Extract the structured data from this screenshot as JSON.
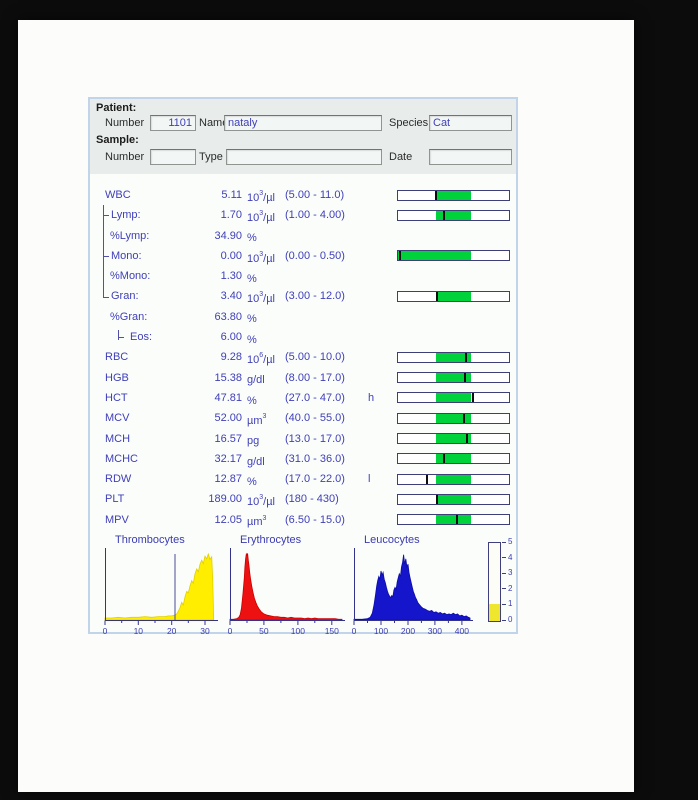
{
  "window": {
    "stage_bg": "#0c0c0c",
    "page_bg": "#fcfcfa"
  },
  "panel": {
    "colors": {
      "panel_border": "#c2d4ea",
      "header_bg": "#e8edeb",
      "body_bg": "#fbfdfb",
      "value_text": "#4040b8",
      "bar_green": "#00d23c",
      "bar_border": "#3e3e78",
      "bar_marker": "#0d0d0d",
      "axis": "#33338c"
    },
    "header": {
      "patient_section_label": "Patient:",
      "sample_section_label": "Sample:",
      "number_label": "Number",
      "name_label": "Name",
      "species_label": "Species",
      "type_label": "Type",
      "date_label": "Date",
      "patient_number": "1101",
      "patient_name": "nataly",
      "species": "Cat",
      "sample_number": "",
      "sample_type": "",
      "sample_date": ""
    }
  },
  "results": {
    "rows": [
      {
        "label": "WBC",
        "tree": "none",
        "value": "5.11",
        "unit": {
          "pre": "10",
          "sup": "3",
          "post": "/µl"
        },
        "range": "(5.00 - 11.0)",
        "flag": "",
        "bar": {
          "green_start": 34,
          "green_end": 66,
          "marker": 34.6
        }
      },
      {
        "label": "Lymp:",
        "tree": "branch",
        "value": "1.70",
        "unit": {
          "pre": "10",
          "sup": "3",
          "post": "/µl"
        },
        "range": "(1.00 - 4.00)",
        "flag": "",
        "bar": {
          "green_start": 34,
          "green_end": 66,
          "marker": 41.5
        }
      },
      {
        "label": "%Lymp:",
        "tree": "vert",
        "value": "34.90",
        "unit": {
          "pre": "%",
          "sup": "",
          "post": ""
        },
        "range": "",
        "flag": "",
        "bar": null
      },
      {
        "label": "Mono:",
        "tree": "branch",
        "value": "0.00",
        "unit": {
          "pre": "10",
          "sup": "3",
          "post": "/µl"
        },
        "range": "(0.00 - 0.50)",
        "flag": "",
        "bar": {
          "green_start": 0,
          "green_end": 66,
          "marker": 0.8
        }
      },
      {
        "label": "%Mono:",
        "tree": "vert",
        "value": "1.30",
        "unit": {
          "pre": "%",
          "sup": "",
          "post": ""
        },
        "range": "",
        "flag": "",
        "bar": null
      },
      {
        "label": "Gran:",
        "tree": "corner",
        "value": "3.40",
        "unit": {
          "pre": "10",
          "sup": "3",
          "post": "/µl"
        },
        "range": "(3.00 - 12.0)",
        "flag": "",
        "bar": {
          "green_start": 34,
          "green_end": 66,
          "marker": 35.4
        }
      },
      {
        "label": "%Gran:",
        "tree": "blank",
        "value": "63.80",
        "unit": {
          "pre": "%",
          "sup": "",
          "post": ""
        },
        "range": "",
        "flag": "",
        "bar": null
      },
      {
        "label": "Eos:",
        "tree": "eos",
        "value": "6.00",
        "unit": {
          "pre": "%",
          "sup": "",
          "post": ""
        },
        "range": "",
        "flag": "",
        "bar": null
      },
      {
        "label": "RBC",
        "tree": "none",
        "value": "9.28",
        "unit": {
          "pre": "10",
          "sup": "6",
          "post": "/µl"
        },
        "range": "(5.00 - 10.0)",
        "flag": "",
        "bar": {
          "green_start": 34,
          "green_end": 66,
          "marker": 61.4
        }
      },
      {
        "label": "HGB",
        "tree": "none",
        "value": "15.38",
        "unit": {
          "pre": "g/dl",
          "sup": "",
          "post": ""
        },
        "range": "(8.00 - 17.0)",
        "flag": "",
        "bar": {
          "green_start": 34,
          "green_end": 66,
          "marker": 60.2
        }
      },
      {
        "label": "HCT",
        "tree": "none",
        "value": "47.81",
        "unit": {
          "pre": "%",
          "sup": "",
          "post": ""
        },
        "range": "(27.0 - 47.0)",
        "flag": "h",
        "bar": {
          "green_start": 34,
          "green_end": 66,
          "marker": 67.3
        }
      },
      {
        "label": "MCV",
        "tree": "none",
        "value": "52.00",
        "unit": {
          "pre": "µm",
          "sup": "3",
          "post": ""
        },
        "range": "(40.0 - 55.0)",
        "flag": "",
        "bar": {
          "green_start": 34,
          "green_end": 66,
          "marker": 59.6
        }
      },
      {
        "label": "MCH",
        "tree": "none",
        "value": "16.57",
        "unit": {
          "pre": "pg",
          "sup": "",
          "post": ""
        },
        "range": "(13.0 - 17.0)",
        "flag": "",
        "bar": {
          "green_start": 34,
          "green_end": 66,
          "marker": 62.6
        }
      },
      {
        "label": "MCHC",
        "tree": "none",
        "value": "32.17",
        "unit": {
          "pre": "g/dl",
          "sup": "",
          "post": ""
        },
        "range": "(31.0 - 36.0)",
        "flag": "",
        "bar": {
          "green_start": 34,
          "green_end": 66,
          "marker": 41.5
        }
      },
      {
        "label": "RDW",
        "tree": "none",
        "value": "12.87",
        "unit": {
          "pre": "%",
          "sup": "",
          "post": ""
        },
        "range": "(17.0 - 22.0)",
        "flag": "l",
        "bar": {
          "green_start": 34,
          "green_end": 66,
          "marker": 26
        }
      },
      {
        "label": "PLT",
        "tree": "none",
        "value": "189.00",
        "unit": {
          "pre": "10",
          "sup": "3",
          "post": "/µl"
        },
        "range": "(180 - 430)",
        "flag": "",
        "bar": {
          "green_start": 34,
          "green_end": 66,
          "marker": 35.2
        }
      },
      {
        "label": "MPV",
        "tree": "none",
        "value": "12.05",
        "unit": {
          "pre": "µm",
          "sup": "3",
          "post": ""
        },
        "range": "(6.50 - 15.0)",
        "flag": "",
        "bar": {
          "green_start": 34,
          "green_end": 66,
          "marker": 53
        }
      }
    ]
  },
  "chart_data": [
    {
      "type": "area",
      "title": "Thrombocytes",
      "x_max": 33,
      "x_ticks": [
        0,
        10,
        20,
        30
      ],
      "x_minor": [
        5,
        15,
        25
      ],
      "discriminator_x": 21,
      "color": "#ffee00",
      "stroke": "#e0cf00",
      "ylim": [
        0,
        1
      ],
      "points": [
        [
          0,
          0.03
        ],
        [
          2,
          0.03
        ],
        [
          4,
          0.04
        ],
        [
          6,
          0.03
        ],
        [
          8,
          0.04
        ],
        [
          10,
          0.04
        ],
        [
          12,
          0.05
        ],
        [
          14,
          0.04
        ],
        [
          16,
          0.05
        ],
        [
          18,
          0.05
        ],
        [
          19,
          0.06
        ],
        [
          20,
          0.06
        ],
        [
          21,
          0.07
        ],
        [
          21.5,
          0.09
        ],
        [
          22,
          0.13
        ],
        [
          22.5,
          0.18
        ],
        [
          23,
          0.26
        ],
        [
          23.5,
          0.22
        ],
        [
          24,
          0.34
        ],
        [
          24.5,
          0.42
        ],
        [
          25,
          0.4
        ],
        [
          25.5,
          0.5
        ],
        [
          26,
          0.58
        ],
        [
          26.5,
          0.54
        ],
        [
          27,
          0.68
        ],
        [
          27.5,
          0.75
        ],
        [
          28,
          0.71
        ],
        [
          28.5,
          0.82
        ],
        [
          29,
          0.88
        ],
        [
          29.5,
          0.83
        ],
        [
          30,
          0.94
        ],
        [
          30.5,
          0.9
        ],
        [
          31,
          0.97
        ],
        [
          31.5,
          0.89
        ],
        [
          32,
          0.93
        ],
        [
          32.3,
          0.6
        ],
        [
          32.6,
          0
        ]
      ]
    },
    {
      "type": "area",
      "title": "Erythrocytes",
      "x_max": 165,
      "x_ticks": [
        0,
        50,
        100,
        150
      ],
      "x_minor": [
        25,
        75,
        125
      ],
      "discriminator_x": null,
      "color": "#ee1111",
      "stroke": "#cc0000",
      "ylim": [
        0,
        1
      ],
      "points": [
        [
          0,
          0.01
        ],
        [
          5,
          0.01
        ],
        [
          10,
          0.02
        ],
        [
          13,
          0.04
        ],
        [
          15,
          0.08
        ],
        [
          17,
          0.18
        ],
        [
          19,
          0.38
        ],
        [
          21,
          0.62
        ],
        [
          22,
          0.78
        ],
        [
          23,
          0.9
        ],
        [
          24,
          0.97
        ],
        [
          25,
          0.95
        ],
        [
          26,
          0.98
        ],
        [
          27,
          0.88
        ],
        [
          28,
          0.8
        ],
        [
          29,
          0.7
        ],
        [
          30,
          0.62
        ],
        [
          32,
          0.5
        ],
        [
          34,
          0.4
        ],
        [
          36,
          0.32
        ],
        [
          38,
          0.26
        ],
        [
          40,
          0.21
        ],
        [
          43,
          0.16
        ],
        [
          46,
          0.12
        ],
        [
          50,
          0.09
        ],
        [
          55,
          0.07
        ],
        [
          60,
          0.06
        ],
        [
          65,
          0.05
        ],
        [
          70,
          0.05
        ],
        [
          75,
          0.04
        ],
        [
          80,
          0.04
        ],
        [
          85,
          0.03
        ],
        [
          90,
          0.04
        ],
        [
          95,
          0.03
        ],
        [
          100,
          0.03
        ],
        [
          105,
          0.03
        ],
        [
          110,
          0.02
        ],
        [
          115,
          0.03
        ],
        [
          120,
          0.02
        ],
        [
          125,
          0.03
        ],
        [
          130,
          0.02
        ],
        [
          135,
          0.02
        ],
        [
          140,
          0.02
        ],
        [
          145,
          0.02
        ],
        [
          150,
          0.02
        ],
        [
          155,
          0.02
        ],
        [
          160,
          0.01
        ],
        [
          165,
          0.01
        ]
      ]
    },
    {
      "type": "area",
      "title": "Leucocytes",
      "x_max": 430,
      "x_ticks": [
        0,
        100,
        200,
        300,
        400
      ],
      "x_minor": [
        50,
        150,
        250,
        350
      ],
      "discriminator_x": null,
      "color": "#1515cc",
      "stroke": "#0d0da6",
      "ylim": [
        0,
        1
      ],
      "points": [
        [
          0,
          0.01
        ],
        [
          30,
          0.01
        ],
        [
          50,
          0.02
        ],
        [
          60,
          0.04
        ],
        [
          68,
          0.1
        ],
        [
          74,
          0.22
        ],
        [
          80,
          0.38
        ],
        [
          84,
          0.5
        ],
        [
          88,
          0.58
        ],
        [
          92,
          0.64
        ],
        [
          96,
          0.6
        ],
        [
          100,
          0.72
        ],
        [
          104,
          0.66
        ],
        [
          108,
          0.7
        ],
        [
          112,
          0.6
        ],
        [
          116,
          0.55
        ],
        [
          120,
          0.48
        ],
        [
          124,
          0.42
        ],
        [
          128,
          0.38
        ],
        [
          132,
          0.35
        ],
        [
          136,
          0.33
        ],
        [
          140,
          0.36
        ],
        [
          144,
          0.34
        ],
        [
          148,
          0.44
        ],
        [
          152,
          0.48
        ],
        [
          156,
          0.45
        ],
        [
          160,
          0.56
        ],
        [
          164,
          0.62
        ],
        [
          168,
          0.68
        ],
        [
          172,
          0.64
        ],
        [
          176,
          0.78
        ],
        [
          180,
          0.85
        ],
        [
          184,
          0.96
        ],
        [
          188,
          0.82
        ],
        [
          192,
          0.9
        ],
        [
          196,
          0.78
        ],
        [
          200,
          0.82
        ],
        [
          204,
          0.7
        ],
        [
          208,
          0.62
        ],
        [
          212,
          0.55
        ],
        [
          216,
          0.48
        ],
        [
          220,
          0.42
        ],
        [
          224,
          0.38
        ],
        [
          228,
          0.33
        ],
        [
          232,
          0.3
        ],
        [
          236,
          0.26
        ],
        [
          240,
          0.24
        ],
        [
          248,
          0.2
        ],
        [
          256,
          0.17
        ],
        [
          264,
          0.16
        ],
        [
          272,
          0.14
        ],
        [
          280,
          0.13
        ],
        [
          288,
          0.14
        ],
        [
          296,
          0.11
        ],
        [
          304,
          0.12
        ],
        [
          312,
          0.1
        ],
        [
          320,
          0.11
        ],
        [
          328,
          0.09
        ],
        [
          336,
          0.1
        ],
        [
          344,
          0.08
        ],
        [
          352,
          0.09
        ],
        [
          360,
          0.08
        ],
        [
          368,
          0.1
        ],
        [
          376,
          0.08
        ],
        [
          384,
          0.09
        ],
        [
          392,
          0.06
        ],
        [
          400,
          0.07
        ],
        [
          408,
          0.05
        ],
        [
          416,
          0.06
        ],
        [
          424,
          0.04
        ],
        [
          430,
          0.03
        ]
      ]
    }
  ],
  "gauge": {
    "min": 0,
    "max": 5,
    "tick_labels": [
      "5",
      "4",
      "3",
      "2",
      "1",
      "0"
    ],
    "fill_level": 1.1,
    "fill_color": "#efe72e"
  }
}
